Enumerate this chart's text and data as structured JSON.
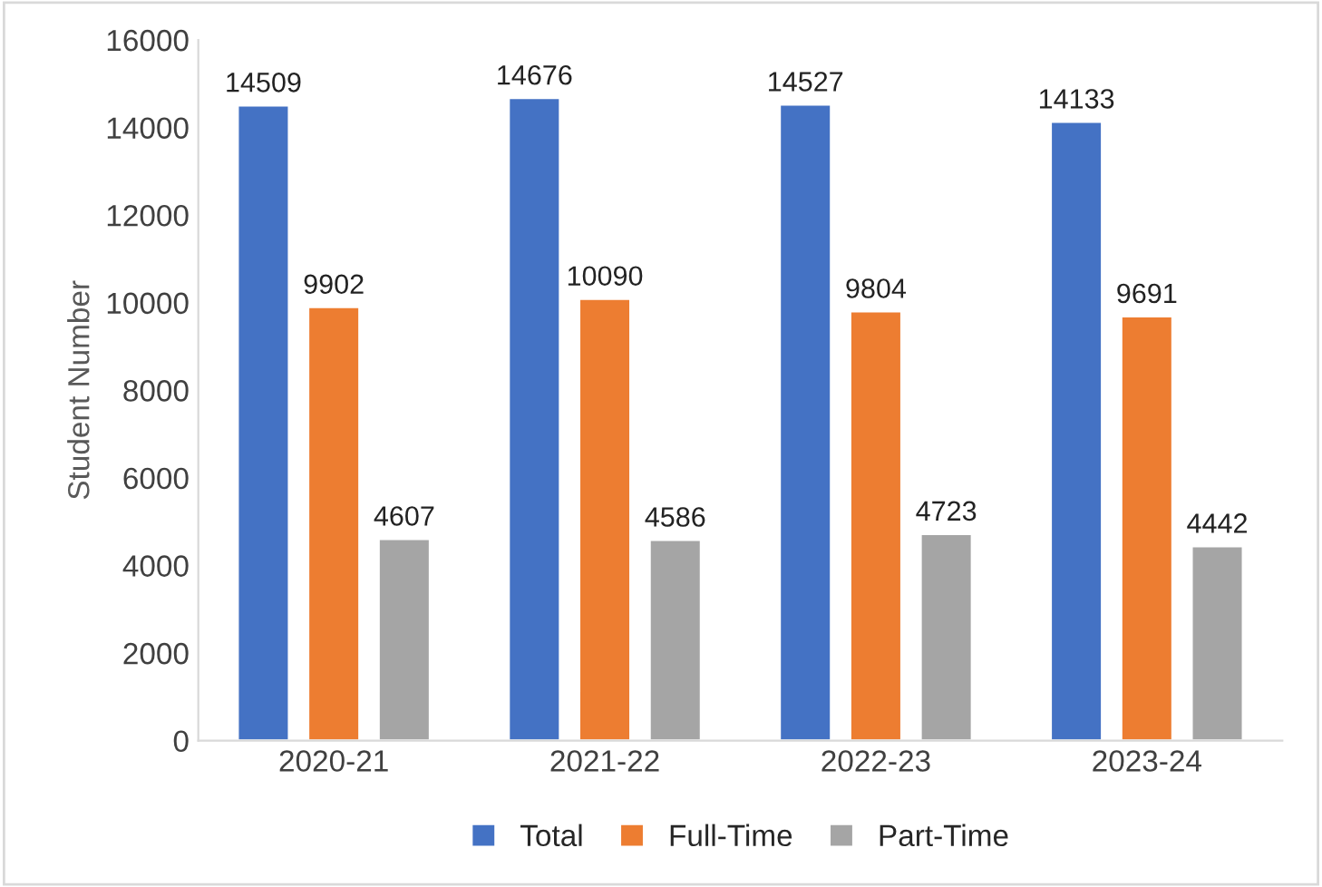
{
  "chart_data": {
    "type": "bar",
    "ylabel": "Student Number",
    "categories": [
      "2020-21",
      "2021-22",
      "2022-23",
      "2023-24"
    ],
    "series": [
      {
        "name": "Total",
        "color": "#4472c4",
        "values": [
          14509,
          14676,
          14527,
          14133
        ]
      },
      {
        "name": "Full-Time",
        "color": "#ed7d31",
        "values": [
          9902,
          10090,
          9804,
          9691
        ]
      },
      {
        "name": "Part-Time",
        "color": "#a5a5a5",
        "values": [
          4607,
          4586,
          4723,
          4442
        ]
      }
    ],
    "ylim": [
      0,
      16000
    ],
    "yticks": [
      0,
      2000,
      4000,
      6000,
      8000,
      10000,
      12000,
      14000,
      16000
    ],
    "data_labels": true,
    "legend": "bottom",
    "grid": false
  }
}
